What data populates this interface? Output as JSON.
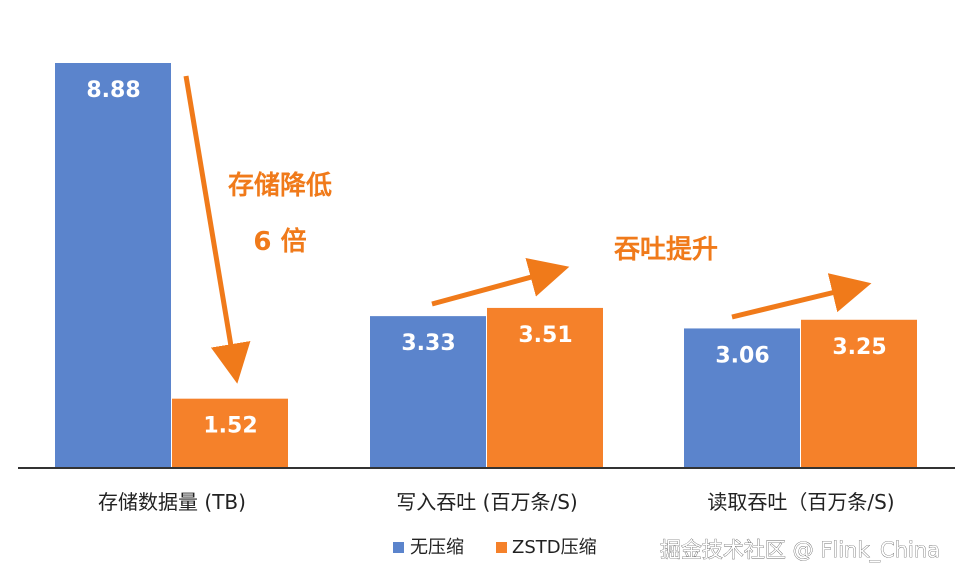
{
  "chart_data": {
    "type": "bar",
    "categories": [
      "存储数据量 (TB)",
      "写入吞吐 (百万条/S)",
      "读取吞吐（百万条/S)"
    ],
    "series": [
      {
        "name": "无压缩",
        "values": [
          8.88,
          3.33,
          3.06
        ],
        "color": "#5b84cc"
      },
      {
        "name": "ZSTD压缩",
        "values": [
          1.52,
          3.51,
          3.25
        ],
        "color": "#f5812a"
      }
    ],
    "annotations": {
      "storage_drop": "存储降低",
      "storage_factor": "6 倍",
      "throughput_up": "吞吐提升"
    },
    "annotation_color": "#f07a1a",
    "ylim": [
      0,
      9.4
    ],
    "grid": false,
    "legend_position": "bottom-right"
  },
  "watermark": "掘金技术社区 @ Flink_China"
}
